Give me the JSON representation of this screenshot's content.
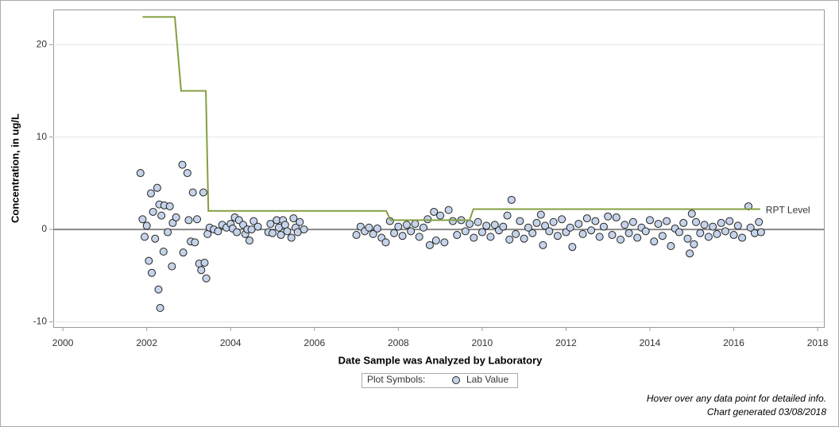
{
  "chart_data": {
    "type": "scatter",
    "x_label": "Date Sample was Analyzed by Laboratory",
    "y_label": "Concentration, in ug/L",
    "legend_title": "Plot Symbols:",
    "notes": [
      "Hover over any data point for detailed info.",
      "Chart generated 03/08/2018"
    ],
    "xlim": [
      1999.77,
      2018.15
    ],
    "xticks": [
      2000,
      2002,
      2004,
      2006,
      2008,
      2010,
      2012,
      2014,
      2016,
      2018
    ],
    "ylim": [
      -10.56,
      23.8
    ],
    "yticks": [
      -10,
      0,
      10,
      20
    ],
    "grid": true,
    "series": [
      {
        "name": "Lab Value",
        "type": "scatter",
        "color": "#c5d3ea",
        "x": [
          2001.85,
          2001.9,
          2001.95,
          2002.0,
          2002.05,
          2002.1,
          2002.12,
          2002.15,
          2002.2,
          2002.25,
          2002.28,
          2002.3,
          2002.32,
          2002.35,
          2002.4,
          2002.42,
          2002.5,
          2002.55,
          2002.6,
          2002.62,
          2002.7,
          2002.85,
          2002.87,
          2002.97,
          2003.0,
          2003.05,
          2003.1,
          2003.15,
          2003.2,
          2003.25,
          2003.3,
          2003.35,
          2003.38,
          2003.42,
          2003.45,
          2003.5,
          2003.6,
          2003.7,
          2003.8,
          2003.9,
          2004.0,
          2004.05,
          2004.1,
          2004.15,
          2004.2,
          2004.3,
          2004.35,
          2004.4,
          2004.45,
          2004.5,
          2004.55,
          2004.65,
          2004.9,
          2004.95,
          2005.0,
          2005.1,
          2005.15,
          2005.2,
          2005.25,
          2005.3,
          2005.35,
          2005.45,
          2005.5,
          2005.55,
          2005.6,
          2005.65,
          2005.75,
          2007.0,
          2007.1,
          2007.2,
          2007.3,
          2007.4,
          2007.5,
          2007.6,
          2007.7,
          2007.8,
          2007.9,
          2008.0,
          2008.1,
          2008.2,
          2008.3,
          2008.4,
          2008.5,
          2008.6,
          2008.7,
          2008.75,
          2008.85,
          2008.9,
          2009.0,
          2009.1,
          2009.2,
          2009.3,
          2009.4,
          2009.5,
          2009.6,
          2009.7,
          2009.8,
          2009.9,
          2010.0,
          2010.1,
          2010.2,
          2010.3,
          2010.4,
          2010.5,
          2010.6,
          2010.65,
          2010.7,
          2010.8,
          2010.9,
          2011.0,
          2011.1,
          2011.2,
          2011.3,
          2011.4,
          2011.45,
          2011.5,
          2011.6,
          2011.7,
          2011.8,
          2011.9,
          2012.0,
          2012.1,
          2012.15,
          2012.3,
          2012.4,
          2012.5,
          2012.6,
          2012.7,
          2012.8,
          2012.9,
          2013.0,
          2013.1,
          2013.2,
          2013.3,
          2013.4,
          2013.5,
          2013.6,
          2013.7,
          2013.8,
          2013.9,
          2014.0,
          2014.1,
          2014.2,
          2014.3,
          2014.4,
          2014.5,
          2014.6,
          2014.7,
          2014.8,
          2014.9,
          2014.95,
          2015.0,
          2015.05,
          2015.1,
          2015.2,
          2015.3,
          2015.4,
          2015.5,
          2015.6,
          2015.7,
          2015.8,
          2015.9,
          2016.0,
          2016.1,
          2016.2,
          2016.35,
          2016.4,
          2016.5,
          2016.6,
          2016.65
        ],
        "values": [
          6.1,
          1.1,
          -0.8,
          0.4,
          -3.4,
          3.9,
          -4.7,
          1.9,
          -1.0,
          4.5,
          -6.5,
          2.7,
          -8.5,
          1.5,
          -2.4,
          2.6,
          -0.3,
          2.5,
          -4.0,
          0.7,
          1.3,
          7.0,
          -2.5,
          6.1,
          1.0,
          -1.3,
          4.0,
          -1.4,
          1.1,
          -3.7,
          -4.4,
          4.0,
          -3.6,
          -5.3,
          -0.5,
          0.2,
          0.0,
          -0.2,
          0.5,
          0.2,
          0.6,
          0.1,
          1.3,
          -0.3,
          1.0,
          0.5,
          -0.5,
          0.0,
          -1.2,
          0.0,
          0.9,
          0.3,
          -0.3,
          0.6,
          -0.4,
          1.0,
          0.2,
          -0.6,
          1.0,
          0.5,
          -0.2,
          -0.9,
          1.2,
          0.2,
          -0.3,
          0.8,
          0.0,
          -0.6,
          0.3,
          -0.2,
          0.2,
          -0.5,
          0.1,
          -0.9,
          -1.4,
          0.9,
          -0.4,
          0.3,
          -0.7,
          0.5,
          -0.2,
          0.6,
          -0.8,
          0.2,
          1.1,
          -1.7,
          1.9,
          -1.2,
          1.5,
          -1.4,
          2.1,
          0.9,
          -0.6,
          1.0,
          -0.2,
          0.6,
          -0.9,
          0.8,
          -0.3,
          0.4,
          -0.8,
          0.5,
          -0.1,
          0.3,
          1.5,
          -1.1,
          3.2,
          -0.5,
          0.9,
          -1.0,
          0.2,
          -0.4,
          0.7,
          1.6,
          -1.7,
          0.4,
          -0.2,
          0.8,
          -0.7,
          1.1,
          -0.3,
          0.2,
          -1.9,
          0.6,
          -0.5,
          1.2,
          -0.1,
          0.9,
          -0.8,
          0.3,
          1.4,
          -0.6,
          1.3,
          -1.1,
          0.5,
          -0.4,
          0.8,
          -0.9,
          0.2,
          -0.2,
          1.0,
          -1.3,
          0.6,
          -0.7,
          0.9,
          -1.8,
          0.1,
          -0.3,
          0.7,
          -1.0,
          -2.6,
          1.7,
          -1.6,
          0.8,
          -0.4,
          0.5,
          -0.8,
          0.3,
          -0.5,
          0.7,
          -0.2,
          0.9,
          -0.6,
          0.4,
          -0.9,
          2.5,
          0.2,
          -0.4,
          0.8,
          -0.3
        ]
      },
      {
        "name": "RPT Level",
        "type": "line",
        "color": "#83a040",
        "x": [
          2001.9,
          2002.67,
          2002.82,
          2003.41,
          2003.47,
          2007.71,
          2007.82,
          2009.7,
          2009.79,
          2016.63
        ],
        "values": [
          23,
          23,
          15,
          15,
          2,
          2,
          1,
          1,
          2.2,
          2.2
        ]
      }
    ]
  }
}
